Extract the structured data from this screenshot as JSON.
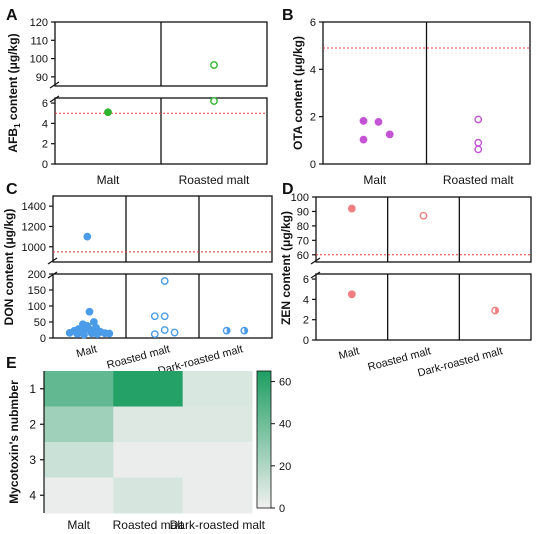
{
  "chart_data": [
    {
      "panel": "A",
      "type": "scatter",
      "ylabel_parts": [
        "AFB",
        "1",
        " content (μg/kg)"
      ],
      "categories": [
        "Malt",
        "Roasted malt"
      ],
      "y_ticks_lower": [
        "0",
        "2",
        "4",
        "6"
      ],
      "y_ticks_upper": [
        "90",
        "100",
        "110",
        "120"
      ],
      "ylim_lower": [
        0,
        6.5
      ],
      "ylim_upper": [
        85,
        120
      ],
      "threshold": 5,
      "points": [
        {
          "category": "Malt",
          "y": 5.1,
          "filled": true
        },
        {
          "category": "Roasted malt",
          "y": 96.5,
          "filled": false
        },
        {
          "category": "Roasted malt",
          "y": 6.2,
          "filled": false
        }
      ],
      "color": "#2fb52f"
    },
    {
      "panel": "B",
      "type": "scatter",
      "ylabel": "OTA content (μg/kg)",
      "categories": [
        "Malt",
        "Roasted malt"
      ],
      "y_ticks": [
        "0",
        "2",
        "4",
        "6"
      ],
      "ylim": [
        0,
        6
      ],
      "threshold": 4.9,
      "points": [
        {
          "category": "Malt",
          "dx": -0.45,
          "y": 1.82,
          "filled": true
        },
        {
          "category": "Malt",
          "dx": 0.15,
          "y": 1.78,
          "filled": true
        },
        {
          "category": "Malt",
          "dx": -0.45,
          "y": 1.03,
          "filled": true
        },
        {
          "category": "Malt",
          "dx": 0.6,
          "y": 1.25,
          "filled": true
        },
        {
          "category": "Roasted malt",
          "dx": 0,
          "y": 1.88,
          "filled": false
        },
        {
          "category": "Roasted malt",
          "dx": 0,
          "y": 0.9,
          "filled": false
        },
        {
          "category": "Roasted malt",
          "dx": 0,
          "y": 0.62,
          "filled": false
        }
      ],
      "color": "#c553d6"
    },
    {
      "panel": "C",
      "type": "scatter",
      "ylabel": "DON content (μg/kg)",
      "categories": [
        "Malt",
        "Roasted malt",
        "Dark-roasted malt"
      ],
      "y_ticks_lower": [
        "0",
        "50",
        "100",
        "150",
        "200"
      ],
      "y_ticks_upper": [
        "1000",
        "1200",
        "1400"
      ],
      "ylim_lower": [
        0,
        200
      ],
      "ylim_upper": [
        850,
        1500
      ],
      "threshold": 950,
      "points": [
        {
          "category": "Malt",
          "dx": -0.1,
          "y": 1100,
          "filled": true
        },
        {
          "category": "Malt",
          "dx": 0,
          "y": 82,
          "filled": true
        },
        {
          "category": "Malt",
          "dx": 0.2,
          "y": 50,
          "filled": true
        },
        {
          "category": "Malt",
          "dx": -0.3,
          "y": 43,
          "filled": true
        },
        {
          "category": "Malt",
          "dx": -0.1,
          "y": 38,
          "filled": true
        },
        {
          "category": "Malt",
          "dx": 0.3,
          "y": 32,
          "filled": true
        },
        {
          "category": "Malt",
          "dx": -0.5,
          "y": 28,
          "filled": true
        },
        {
          "category": "Malt",
          "dx": 0.0,
          "y": 27,
          "filled": true
        },
        {
          "category": "Malt",
          "dx": -0.7,
          "y": 22,
          "filled": true
        },
        {
          "category": "Malt",
          "dx": -0.3,
          "y": 20,
          "filled": true
        },
        {
          "category": "Malt",
          "dx": 0.5,
          "y": 19,
          "filled": true
        },
        {
          "category": "Malt",
          "dx": -0.9,
          "y": 16,
          "filled": true
        },
        {
          "category": "Malt",
          "dx": 0.1,
          "y": 15,
          "filled": true
        },
        {
          "category": "Malt",
          "dx": 0.7,
          "y": 15,
          "filled": true
        },
        {
          "category": "Malt",
          "dx": -0.55,
          "y": 13,
          "filled": true
        },
        {
          "category": "Malt",
          "dx": 0.35,
          "y": 12,
          "filled": true
        },
        {
          "category": "Malt",
          "dx": -0.25,
          "y": 10,
          "filled": true
        },
        {
          "category": "Malt",
          "dx": 0.9,
          "y": 14,
          "filled": true
        },
        {
          "category": "Roasted malt",
          "dx": 0.1,
          "y": 178,
          "filled": false
        },
        {
          "category": "Roasted malt",
          "dx": -0.35,
          "y": 68,
          "filled": false
        },
        {
          "category": "Roasted malt",
          "dx": 0.1,
          "y": 68,
          "filled": false
        },
        {
          "category": "Roasted malt",
          "dx": 0.1,
          "y": 25,
          "filled": false
        },
        {
          "category": "Roasted malt",
          "dx": -0.35,
          "y": 12,
          "filled": false
        },
        {
          "category": "Roasted malt",
          "dx": 0.55,
          "y": 17,
          "filled": false
        },
        {
          "category": "Dark-roasted malt",
          "dx": -0.4,
          "y": 23,
          "filled": false,
          "half": true
        },
        {
          "category": "Dark-roasted malt",
          "dx": 0.4,
          "y": 23,
          "filled": false,
          "half": true
        }
      ],
      "color": "#4a9be8"
    },
    {
      "panel": "D",
      "type": "scatter",
      "ylabel": "ZEN content (μg/kg)",
      "categories": [
        "Malt",
        "Roasted malt",
        "Dark-roasted malt"
      ],
      "y_ticks_lower": [
        "0",
        "2",
        "4",
        "6"
      ],
      "y_ticks_upper": [
        "60",
        "70",
        "80",
        "90",
        "100"
      ],
      "ylim_lower": [
        0,
        6.5
      ],
      "ylim_upper": [
        55,
        100
      ],
      "threshold": 60,
      "points": [
        {
          "category": "Malt",
          "dx": 0,
          "y": 92,
          "filled": true
        },
        {
          "category": "Malt",
          "dx": 0,
          "y": 4.5,
          "filled": true
        },
        {
          "category": "Roasted malt",
          "dx": 0,
          "y": 87,
          "filled": false
        },
        {
          "category": "Dark-roasted malt",
          "dx": 0,
          "y": 2.9,
          "filled": false,
          "half": true
        }
      ],
      "color": "#f07f7f"
    },
    {
      "panel": "E",
      "type": "heatmap",
      "ylabel": "Mycotoxin's nubmber",
      "xlabels": [
        "Malt",
        "Roasted malt",
        "Dark-roasted malt"
      ],
      "ylabels": [
        "1",
        "2",
        "3",
        "4"
      ],
      "values": [
        [
          44,
          63,
          7
        ],
        [
          25,
          6,
          6
        ],
        [
          12,
          2,
          2
        ],
        [
          2,
          8,
          2
        ]
      ],
      "colorbar_ticks": [
        "0",
        "20",
        "40",
        "60"
      ],
      "colorbar_range": [
        0,
        65
      ],
      "color_low": "#f0f0f0",
      "color_high": "#1e9e62"
    }
  ],
  "panel_letters": [
    "A",
    "B",
    "C",
    "D",
    "E"
  ]
}
